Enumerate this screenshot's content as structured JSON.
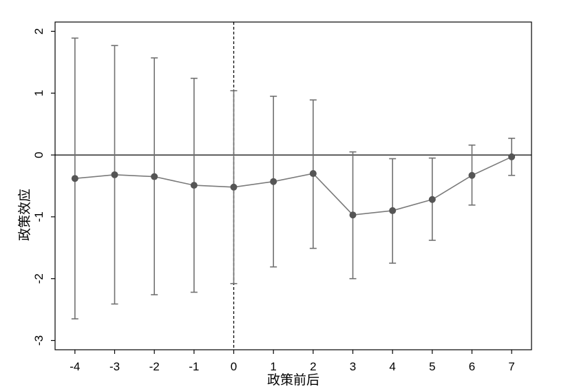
{
  "chart_data": {
    "type": "line",
    "title": "",
    "xlabel": "政策前后",
    "ylabel": "政策效应",
    "xlim": [
      -4.5,
      7.5
    ],
    "ylim": [
      -3.15,
      2.15
    ],
    "x_ticks": [
      -4,
      -3,
      -2,
      -1,
      0,
      1,
      2,
      3,
      4,
      5,
      6,
      7
    ],
    "y_ticks": [
      -3,
      -2,
      -1,
      0,
      1,
      2
    ],
    "x_tick_labels": [
      "-4",
      "-3",
      "-2",
      "-1",
      "0",
      "1",
      "2",
      "3",
      "4",
      "5",
      "6",
      "7"
    ],
    "y_tick_labels": [
      "-3",
      "-2",
      "-1",
      "0",
      "1",
      "2"
    ],
    "reference_line_y": 0,
    "reference_line_x": 0,
    "series": [
      {
        "x": [
          -4,
          -3,
          -2,
          -1,
          0,
          1,
          2,
          3,
          4,
          5,
          6,
          7
        ],
        "values": [
          -0.38,
          -0.32,
          -0.35,
          -0.49,
          -0.52,
          -0.43,
          -0.3,
          -0.97,
          -0.9,
          -0.72,
          -0.33,
          -0.03
        ],
        "ci_lower": [
          -2.65,
          -2.41,
          -2.26,
          -2.22,
          -2.08,
          -1.81,
          -1.51,
          -2.0,
          -1.75,
          -1.38,
          -0.81,
          -0.33
        ],
        "ci_upper": [
          1.89,
          1.77,
          1.57,
          1.24,
          1.04,
          0.95,
          0.89,
          0.05,
          -0.06,
          -0.05,
          0.16,
          0.27
        ]
      }
    ],
    "colors": {
      "line": "#7a7a7a",
      "marker": "#555555",
      "ci": "#707070",
      "axis": "#000000",
      "zero_line": "#000000"
    },
    "grid": false,
    "legend": "none"
  }
}
